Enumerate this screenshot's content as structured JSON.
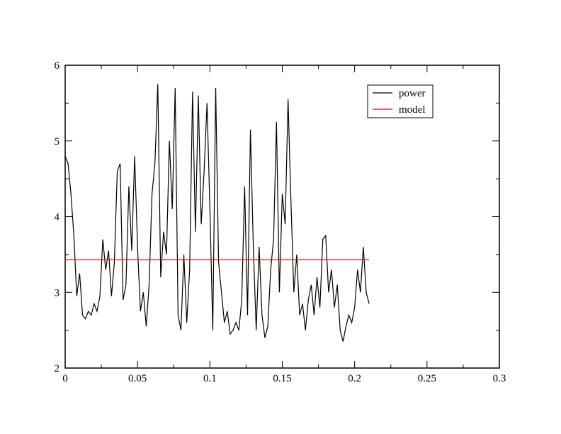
{
  "chart_data": {
    "type": "line",
    "xlim": [
      0,
      0.3
    ],
    "ylim": [
      2,
      6
    ],
    "xticks": [
      0,
      0.05,
      0.1,
      0.15,
      0.2,
      0.25,
      0.3
    ],
    "yticks": [
      2,
      3,
      4,
      5,
      6
    ],
    "xminorticks": [
      0.025,
      0.075,
      0.125,
      0.175,
      0.225,
      0.275
    ],
    "yminorticks": [
      2.5,
      3.5,
      4.5,
      5.5
    ],
    "legend": "top-right",
    "series": [
      {
        "name": "power",
        "color": "#000000",
        "x": [
          0,
          0.002,
          0.004,
          0.006,
          0.008,
          0.01,
          0.012,
          0.014,
          0.016,
          0.018,
          0.02,
          0.022,
          0.024,
          0.026,
          0.028,
          0.03,
          0.032,
          0.034,
          0.036,
          0.038,
          0.04,
          0.042,
          0.044,
          0.046,
          0.048,
          0.05,
          0.052,
          0.054,
          0.056,
          0.058,
          0.06,
          0.062,
          0.064,
          0.066,
          0.068,
          0.07,
          0.072,
          0.074,
          0.076,
          0.078,
          0.08,
          0.082,
          0.084,
          0.086,
          0.088,
          0.09,
          0.092,
          0.094,
          0.096,
          0.098,
          0.1,
          0.102,
          0.104,
          0.106,
          0.108,
          0.11,
          0.112,
          0.114,
          0.116,
          0.118,
          0.12,
          0.122,
          0.124,
          0.126,
          0.128,
          0.13,
          0.132,
          0.134,
          0.136,
          0.138,
          0.14,
          0.142,
          0.144,
          0.146,
          0.148,
          0.15,
          0.152,
          0.154,
          0.156,
          0.158,
          0.16,
          0.162,
          0.164,
          0.166,
          0.168,
          0.17,
          0.172,
          0.174,
          0.176,
          0.178,
          0.18,
          0.182,
          0.184,
          0.186,
          0.188,
          0.19,
          0.192,
          0.194,
          0.196,
          0.198,
          0.2,
          0.202,
          0.204,
          0.206,
          0.208,
          0.21
        ],
        "values": [
          4.8,
          4.7,
          4.3,
          3.75,
          2.95,
          3.25,
          2.7,
          2.65,
          2.75,
          2.7,
          2.85,
          2.75,
          2.95,
          3.7,
          3.3,
          3.55,
          2.95,
          3.4,
          4.6,
          4.7,
          2.9,
          3.1,
          4.4,
          3.55,
          4.8,
          3.6,
          2.75,
          3.0,
          2.55,
          3.1,
          4.3,
          4.7,
          5.75,
          3.2,
          3.8,
          3.5,
          5.0,
          4.1,
          5.7,
          2.7,
          2.5,
          3.5,
          2.6,
          3.3,
          5.65,
          3.8,
          5.6,
          3.9,
          4.6,
          5.5,
          4.1,
          2.5,
          5.7,
          3.4,
          3.0,
          2.6,
          2.75,
          2.45,
          2.5,
          2.6,
          2.5,
          2.9,
          4.4,
          2.7,
          5.15,
          3.6,
          2.5,
          3.6,
          2.7,
          2.4,
          2.55,
          3.3,
          3.7,
          5.25,
          3.0,
          4.3,
          3.9,
          5.55,
          4.2,
          3.0,
          3.5,
          2.7,
          2.85,
          2.5,
          2.9,
          3.1,
          2.7,
          3.2,
          2.8,
          3.7,
          3.75,
          3.0,
          3.3,
          2.8,
          3.1,
          2.5,
          2.35,
          2.55,
          2.7,
          2.6,
          2.8,
          3.3,
          3.0,
          3.6,
          3.0,
          2.85
        ]
      },
      {
        "name": "model",
        "color": "#ff0000",
        "x": [
          0,
          0.21
        ],
        "values": [
          3.43,
          3.43
        ]
      }
    ]
  }
}
